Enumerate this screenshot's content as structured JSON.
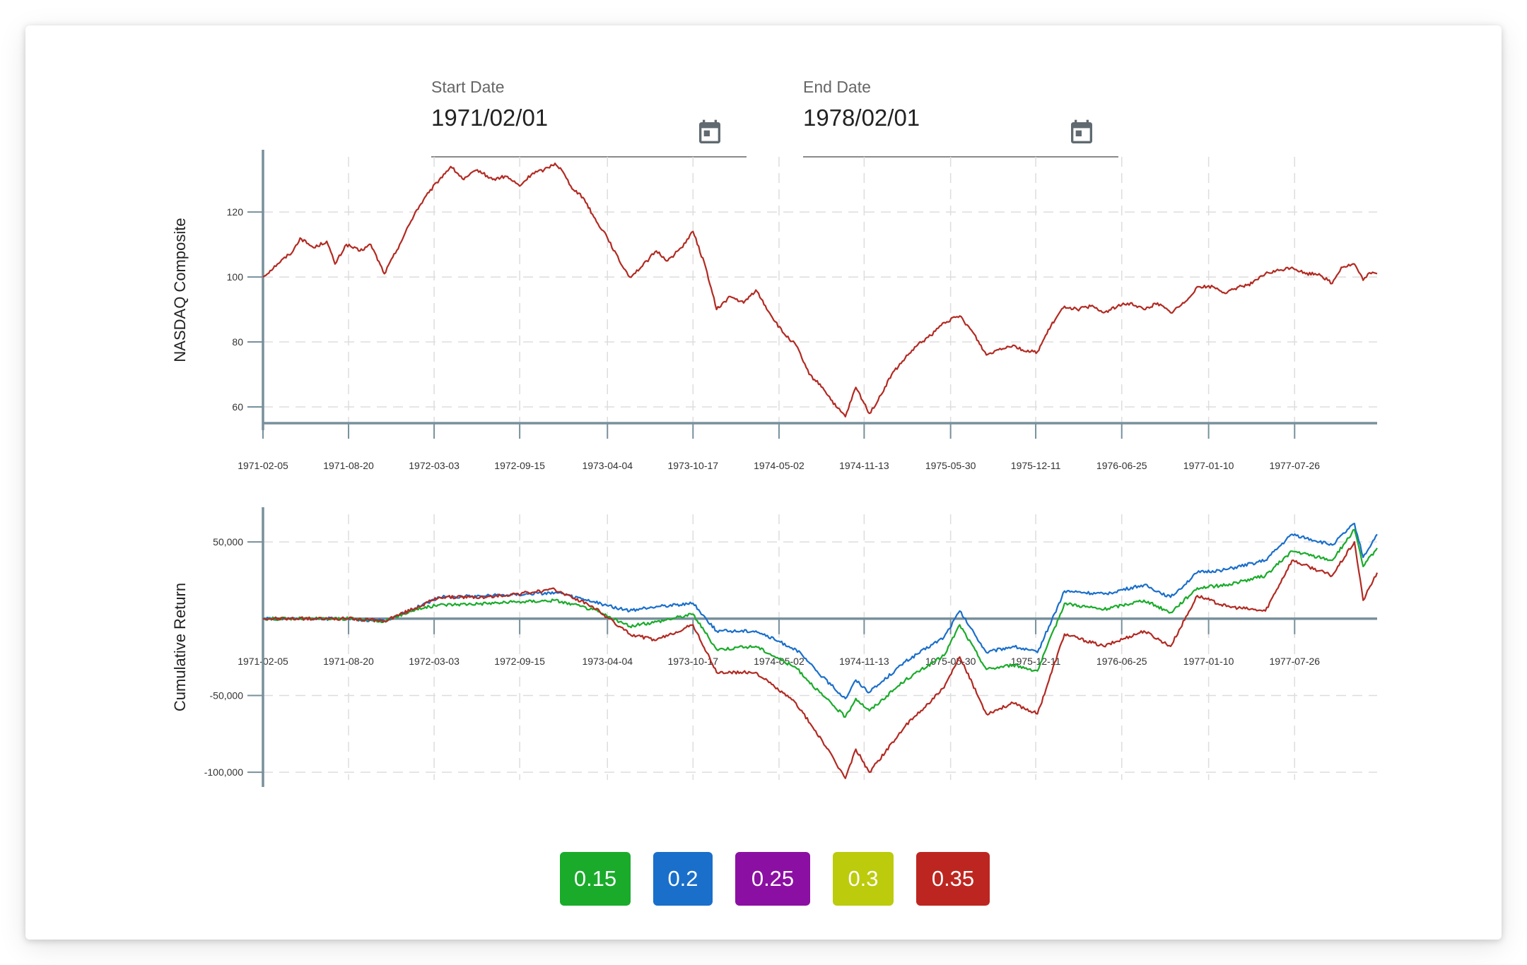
{
  "start_date": {
    "label": "Start Date",
    "value": "1971/02/01",
    "icon": "calendar-icon"
  },
  "end_date": {
    "label": "End Date",
    "value": "1978/02/01",
    "icon": "calendar-icon"
  },
  "colors": {
    "axis": "#78909c",
    "grid": "#dddddd",
    "tick_text": "#333333"
  },
  "buttons": [
    {
      "label": "0.15",
      "color": "#1aab2b"
    },
    {
      "label": "0.2",
      "color": "#1a6fca"
    },
    {
      "label": "0.25",
      "color": "#8c0fa3"
    },
    {
      "label": "0.3",
      "color": "#bccb0b"
    },
    {
      "label": "0.35",
      "color": "#bd2620"
    }
  ],
  "chart_data": [
    {
      "type": "line",
      "title": "",
      "xlabel": "",
      "ylabel": "NASDAQ Composite",
      "ylim": [
        55,
        137
      ],
      "y_ticks": [
        60,
        80,
        100,
        120
      ],
      "x_ticks": [
        "1971-02-05",
        "1971-08-20",
        "1972-03-03",
        "1972-09-15",
        "1973-04-04",
        "1973-10-17",
        "1974-05-02",
        "1974-11-13",
        "1975-05-30",
        "1975-12-11",
        "1976-06-25",
        "1977-01-10",
        "1977-07-26"
      ],
      "x_range": [
        "1971-02-05",
        "1978-01-31"
      ],
      "grid": true,
      "series": [
        {
          "color": "#b22a22",
          "points": [
            [
              "1971-02-05",
              100
            ],
            [
              "1971-03-10",
              104
            ],
            [
              "1971-04-15",
              108
            ],
            [
              "1971-05-01",
              112
            ],
            [
              "1971-06-01",
              109
            ],
            [
              "1971-07-01",
              111
            ],
            [
              "1971-07-20",
              104
            ],
            [
              "1971-08-15",
              110
            ],
            [
              "1971-09-15",
              108
            ],
            [
              "1971-10-10",
              110
            ],
            [
              "1971-11-10",
              101
            ],
            [
              "1971-12-15",
              110
            ],
            [
              "1972-01-20",
              120
            ],
            [
              "1972-02-20",
              126
            ],
            [
              "1972-03-15",
              130
            ],
            [
              "1972-04-10",
              134
            ],
            [
              "1972-05-10",
              130
            ],
            [
              "1972-06-10",
              133
            ],
            [
              "1972-07-15",
              130
            ],
            [
              "1972-08-15",
              131
            ],
            [
              "1972-09-15",
              128
            ],
            [
              "1972-10-15",
              132
            ],
            [
              "1972-11-10",
              133
            ],
            [
              "1972-12-05",
              135
            ],
            [
              "1972-12-20",
              133
            ],
            [
              "1973-01-10",
              128
            ],
            [
              "1973-02-10",
              124
            ],
            [
              "1973-03-10",
              117
            ],
            [
              "1973-04-01",
              113
            ],
            [
              "1973-05-01",
              105
            ],
            [
              "1973-05-25",
              100
            ],
            [
              "1973-06-20",
              103
            ],
            [
              "1973-07-25",
              108
            ],
            [
              "1973-08-20",
              105
            ],
            [
              "1973-09-20",
              109
            ],
            [
              "1973-10-17",
              114
            ],
            [
              "1973-11-15",
              103
            ],
            [
              "1973-12-10",
              90
            ],
            [
              "1974-01-10",
              94
            ],
            [
              "1974-02-10",
              92
            ],
            [
              "1974-03-10",
              96
            ],
            [
              "1974-04-10",
              89
            ],
            [
              "1974-05-10",
              83
            ],
            [
              "1974-06-10",
              79
            ],
            [
              "1974-07-10",
              70
            ],
            [
              "1974-08-10",
              66
            ],
            [
              "1974-09-10",
              60
            ],
            [
              "1974-10-01",
              57
            ],
            [
              "1974-10-25",
              66
            ],
            [
              "1974-11-25",
              58
            ],
            [
              "1974-12-15",
              62
            ],
            [
              "1975-01-15",
              70
            ],
            [
              "1975-02-15",
              75
            ],
            [
              "1975-03-15",
              79
            ],
            [
              "1975-04-15",
              82
            ],
            [
              "1975-05-15",
              86
            ],
            [
              "1975-06-20",
              88
            ],
            [
              "1975-07-20",
              83
            ],
            [
              "1975-08-20",
              76
            ],
            [
              "1975-09-20",
              78
            ],
            [
              "1975-10-20",
              79
            ],
            [
              "1975-11-20",
              77
            ],
            [
              "1975-12-15",
              77
            ],
            [
              "1976-01-15",
              85
            ],
            [
              "1976-02-15",
              91
            ],
            [
              "1976-03-15",
              90
            ],
            [
              "1976-04-15",
              91
            ],
            [
              "1976-05-15",
              89
            ],
            [
              "1976-06-15",
              91
            ],
            [
              "1976-07-15",
              92
            ],
            [
              "1976-08-15",
              90
            ],
            [
              "1976-09-15",
              92
            ],
            [
              "1976-10-15",
              89
            ],
            [
              "1976-11-15",
              92
            ],
            [
              "1976-12-15",
              97
            ],
            [
              "1977-01-20",
              97
            ],
            [
              "1977-02-20",
              95
            ],
            [
              "1977-03-20",
              97
            ],
            [
              "1977-04-20",
              98
            ],
            [
              "1977-05-20",
              101
            ],
            [
              "1977-06-20",
              102
            ],
            [
              "1977-07-20",
              103
            ],
            [
              "1977-08-20",
              101
            ],
            [
              "1977-09-20",
              101
            ],
            [
              "1977-10-20",
              98
            ],
            [
              "1977-11-10",
              103
            ],
            [
              "1977-12-10",
              104
            ],
            [
              "1977-12-30",
              99
            ],
            [
              "1978-01-10",
              101
            ],
            [
              "1978-01-31",
              101
            ]
          ]
        }
      ]
    },
    {
      "type": "line",
      "title": "",
      "xlabel": "",
      "ylabel": "Cumulative Return",
      "ylim": [
        -105000,
        68000
      ],
      "y_ticks": [
        -100000,
        -50000,
        50000
      ],
      "y_tick_labels": [
        "-100,000",
        "-50,000",
        "50,000"
      ],
      "x_ticks": [
        "1971-02-05",
        "1971-08-20",
        "1972-03-03",
        "1972-09-15",
        "1973-04-04",
        "1973-10-17",
        "1974-05-02",
        "1974-11-13",
        "1975-05-30",
        "1975-12-11",
        "1976-06-25",
        "1977-01-10",
        "1977-07-26"
      ],
      "x_range": [
        "1971-02-05",
        "1978-01-31"
      ],
      "baseline": 0,
      "grid": true,
      "series": [
        {
          "color": "#1a6fca",
          "points": [
            [
              "1971-02-05",
              0
            ],
            [
              "1971-08-20",
              0
            ],
            [
              "1971-11-10",
              -1500
            ],
            [
              "1972-01-20",
              7000
            ],
            [
              "1972-03-15",
              14000
            ],
            [
              "1972-07-01",
              15000
            ],
            [
              "1972-12-05",
              17000
            ],
            [
              "1973-03-01",
              11000
            ],
            [
              "1973-05-25",
              5000
            ],
            [
              "1973-07-25",
              8000
            ],
            [
              "1973-10-17",
              10000
            ],
            [
              "1973-12-10",
              -8000
            ],
            [
              "1974-03-10",
              -8000
            ],
            [
              "1974-06-10",
              -20000
            ],
            [
              "1974-08-10",
              -38000
            ],
            [
              "1974-10-01",
              -52000
            ],
            [
              "1974-10-25",
              -40000
            ],
            [
              "1974-11-25",
              -48000
            ],
            [
              "1975-02-15",
              -28000
            ],
            [
              "1975-05-15",
              -12000
            ],
            [
              "1975-06-20",
              5000
            ],
            [
              "1975-08-20",
              -22000
            ],
            [
              "1975-10-20",
              -18000
            ],
            [
              "1975-12-15",
              -22000
            ],
            [
              "1976-02-15",
              18000
            ],
            [
              "1976-05-15",
              16000
            ],
            [
              "1976-08-15",
              22000
            ],
            [
              "1976-10-15",
              14000
            ],
            [
              "1976-12-15",
              30000
            ],
            [
              "1977-02-20",
              32000
            ],
            [
              "1977-05-20",
              38000
            ],
            [
              "1977-07-20",
              55000
            ],
            [
              "1977-10-20",
              48000
            ],
            [
              "1977-12-10",
              62000
            ],
            [
              "1977-12-30",
              40000
            ],
            [
              "1978-01-31",
              55000
            ]
          ]
        },
        {
          "color": "#1aab2b",
          "points": [
            [
              "1971-02-05",
              0
            ],
            [
              "1971-08-20",
              0
            ],
            [
              "1971-11-10",
              -1500
            ],
            [
              "1972-01-20",
              6000
            ],
            [
              "1972-03-15",
              9000
            ],
            [
              "1972-07-01",
              10000
            ],
            [
              "1972-12-05",
              12000
            ],
            [
              "1973-03-01",
              6000
            ],
            [
              "1973-05-25",
              -5000
            ],
            [
              "1973-07-25",
              -2000
            ],
            [
              "1973-10-17",
              3000
            ],
            [
              "1973-12-10",
              -20000
            ],
            [
              "1974-03-10",
              -18000
            ],
            [
              "1974-06-10",
              -32000
            ],
            [
              "1974-08-10",
              -50000
            ],
            [
              "1974-10-01",
              -64000
            ],
            [
              "1974-10-25",
              -52000
            ],
            [
              "1974-11-25",
              -60000
            ],
            [
              "1975-02-15",
              -40000
            ],
            [
              "1975-05-15",
              -24000
            ],
            [
              "1975-06-20",
              -4000
            ],
            [
              "1975-08-20",
              -33000
            ],
            [
              "1975-10-20",
              -30000
            ],
            [
              "1975-12-15",
              -34000
            ],
            [
              "1976-02-15",
              10000
            ],
            [
              "1976-05-15",
              6000
            ],
            [
              "1976-08-15",
              12000
            ],
            [
              "1976-10-15",
              4000
            ],
            [
              "1976-12-15",
              20000
            ],
            [
              "1977-02-20",
              22000
            ],
            [
              "1977-05-20",
              28000
            ],
            [
              "1977-07-20",
              44000
            ],
            [
              "1977-10-20",
              38000
            ],
            [
              "1977-12-10",
              58000
            ],
            [
              "1977-12-30",
              34000
            ],
            [
              "1978-01-31",
              46000
            ]
          ]
        },
        {
          "color": "#b22a22",
          "points": [
            [
              "1971-02-05",
              0
            ],
            [
              "1971-08-20",
              0
            ],
            [
              "1971-11-10",
              -1500
            ],
            [
              "1972-01-20",
              7000
            ],
            [
              "1972-03-15",
              14000
            ],
            [
              "1972-07-01",
              14000
            ],
            [
              "1972-12-05",
              19000
            ],
            [
              "1973-03-01",
              8000
            ],
            [
              "1973-05-25",
              -10000
            ],
            [
              "1973-07-25",
              -14000
            ],
            [
              "1973-10-17",
              -4000
            ],
            [
              "1973-12-10",
              -35000
            ],
            [
              "1974-03-10",
              -35000
            ],
            [
              "1974-06-10",
              -55000
            ],
            [
              "1974-08-10",
              -80000
            ],
            [
              "1974-10-01",
              -104000
            ],
            [
              "1974-10-25",
              -85000
            ],
            [
              "1974-11-25",
              -100000
            ],
            [
              "1975-02-15",
              -70000
            ],
            [
              "1975-05-15",
              -45000
            ],
            [
              "1975-06-20",
              -25000
            ],
            [
              "1975-08-20",
              -62000
            ],
            [
              "1975-10-20",
              -55000
            ],
            [
              "1975-12-15",
              -62000
            ],
            [
              "1976-02-15",
              -10000
            ],
            [
              "1976-05-15",
              -18000
            ],
            [
              "1976-08-15",
              -8000
            ],
            [
              "1976-10-15",
              -18000
            ],
            [
              "1976-12-15",
              15000
            ],
            [
              "1977-02-20",
              8000
            ],
            [
              "1977-05-20",
              5000
            ],
            [
              "1977-07-20",
              38000
            ],
            [
              "1977-10-20",
              28000
            ],
            [
              "1977-12-10",
              50000
            ],
            [
              "1977-12-30",
              12000
            ],
            [
              "1978-01-31",
              30000
            ]
          ]
        }
      ]
    }
  ]
}
